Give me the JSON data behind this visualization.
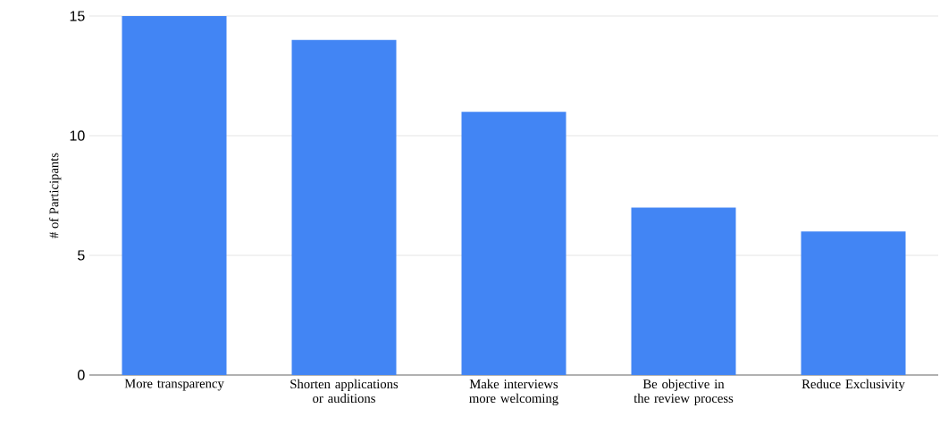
{
  "chart_data": {
    "type": "bar",
    "categories": [
      "More transparency",
      "Shorten applications or auditions",
      "Make interviews more welcoming",
      "Be objective in the review process",
      "Reduce Exclusivity"
    ],
    "values": [
      15,
      14,
      11,
      7,
      6
    ],
    "color": "#4285f4",
    "ylabel": "# of Participants",
    "ylim": [
      0,
      15
    ],
    "yticks": [
      0,
      5,
      10,
      15
    ],
    "grid": "y"
  }
}
